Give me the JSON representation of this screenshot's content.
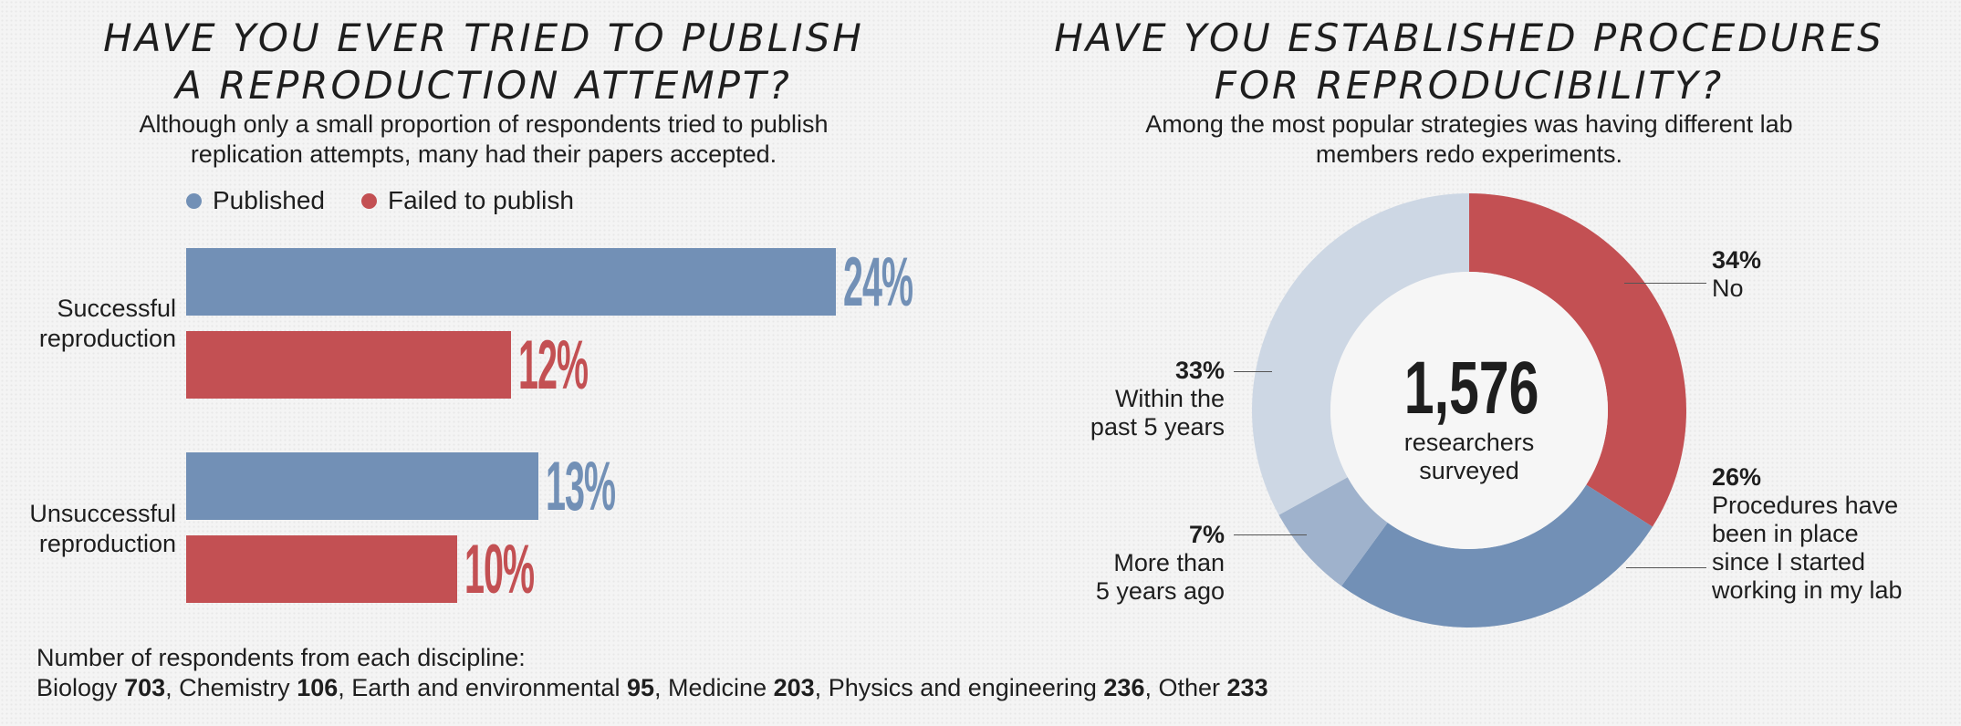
{
  "left_panel": {
    "title_lines": [
      "HAVE YOU EVER TRIED TO PUBLISH",
      "A REPRODUCTION ATTEMPT?"
    ],
    "subtitle_lines": [
      "Although only a small proportion of respondents tried to publish",
      "replication attempts, many had their papers accepted."
    ],
    "legend": [
      {
        "label": "Published",
        "color": "#7290b6"
      },
      {
        "label": "Failed to publish",
        "color": "#c35053"
      }
    ]
  },
  "right_panel": {
    "title_lines": [
      "HAVE YOU ESTABLISHED PROCEDURES",
      "FOR REPRODUCIBILITY?"
    ],
    "subtitle_lines": [
      "Among the most popular strategies was having different lab",
      "members redo experiments."
    ],
    "center_value": "1,576",
    "center_text_lines": [
      "researchers",
      "surveyed"
    ]
  },
  "chart_data": [
    {
      "type": "bar",
      "orientation": "horizontal",
      "title": "HAVE YOU EVER TRIED TO PUBLISH A REPRODUCTION ATTEMPT?",
      "categories": [
        {
          "label_lines": [
            "Successful",
            "reproduction"
          ]
        },
        {
          "label_lines": [
            "Unsuccessful",
            "reproduction"
          ]
        }
      ],
      "series": [
        {
          "name": "Published",
          "color": "#7290b6",
          "values": [
            24,
            13
          ],
          "labels": [
            "24%",
            "13%"
          ]
        },
        {
          "name": "Failed to publish",
          "color": "#c35053",
          "values": [
            12,
            10
          ],
          "labels": [
            "12%",
            "10%"
          ]
        }
      ],
      "xlim": [
        0,
        25
      ],
      "legend": "top-left",
      "grid": false
    },
    {
      "type": "pie",
      "donut": true,
      "title": "HAVE YOU ESTABLISHED PROCEDURES FOR REPRODUCIBILITY?",
      "slices": [
        {
          "label": "No",
          "pct_label": "34%",
          "value": 34,
          "color": "#c35053"
        },
        {
          "label": "Procedures have been in place since I started working in my lab",
          "label_lines": [
            "Procedures have",
            "been in place",
            "since I started",
            "working in my lab"
          ],
          "pct_label": "26%",
          "value": 26,
          "color": "#7290b6"
        },
        {
          "label": "More than 5 years ago",
          "label_lines": [
            "More than",
            "5 years ago"
          ],
          "pct_label": "7%",
          "value": 7,
          "color": "#9fb2cc"
        },
        {
          "label": "Within the past 5 years",
          "label_lines": [
            "Within the",
            "past 5 years"
          ],
          "pct_label": "33%",
          "value": 33,
          "color": "#cdd7e4"
        }
      ]
    }
  ],
  "footer": {
    "heading": "Number of respondents from each discipline:",
    "disciplines": [
      {
        "name": "Biology",
        "count": "703",
        "sep": ", "
      },
      {
        "name": "Chemistry",
        "count": "106",
        "sep": ", "
      },
      {
        "name": "Earth and environmental",
        "count": "95",
        "sep": ", "
      },
      {
        "name": "Medicine",
        "count": "203",
        "sep": ", "
      },
      {
        "name": "Physics and engineering",
        "count": "236",
        "sep": ", "
      },
      {
        "name": "Other",
        "count": "233",
        "sep": ""
      }
    ]
  }
}
